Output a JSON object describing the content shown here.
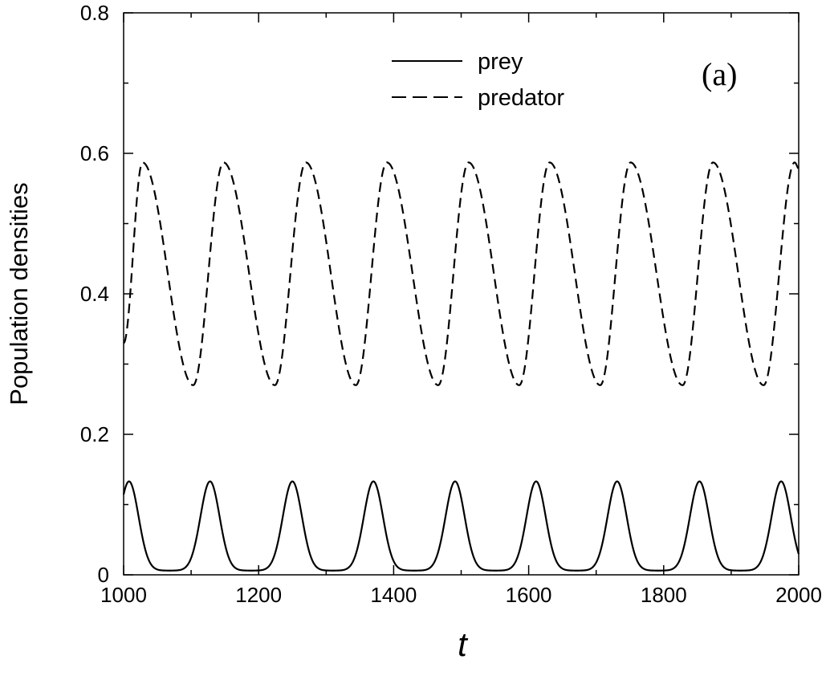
{
  "chart_data": {
    "type": "line",
    "panel_label": "(a)",
    "xlabel": "t",
    "ylabel": "Population densities",
    "xlim": [
      1000,
      2000
    ],
    "ylim": [
      0,
      0.8
    ],
    "x_ticks": [
      1000,
      1200,
      1400,
      1600,
      1800,
      2000
    ],
    "y_ticks": [
      0,
      0.2,
      0.4,
      0.6,
      0.8
    ],
    "y_tick_labels": [
      "0",
      "0.2",
      "0.4",
      "0.6",
      "0.8"
    ],
    "x_tick_labels": [
      "1000",
      "1200",
      "1400",
      "1600",
      "1800",
      "2000"
    ],
    "grid": false,
    "legend_placement": "top-center",
    "series": [
      {
        "name": "prey",
        "style": "solid",
        "color": "#000000",
        "peaks_x": [
          1008,
          1128,
          1250,
          1370,
          1491,
          1611,
          1731,
          1853,
          1974
        ],
        "peak_y": 0.133,
        "trough_y": 0.006,
        "start_y": 0.11,
        "end_y": 0.025
      },
      {
        "name": "predator",
        "style": "dashed",
        "color": "#000000",
        "peaks_x": [
          1028,
          1148,
          1270,
          1390,
          1511,
          1631,
          1751,
          1873,
          1994
        ],
        "troughs_x": [
          1103,
          1224,
          1344,
          1466,
          1586,
          1706,
          1828,
          1948
        ],
        "peak_y": 0.587,
        "trough_y": 0.27,
        "start_y": 0.33
      }
    ]
  }
}
